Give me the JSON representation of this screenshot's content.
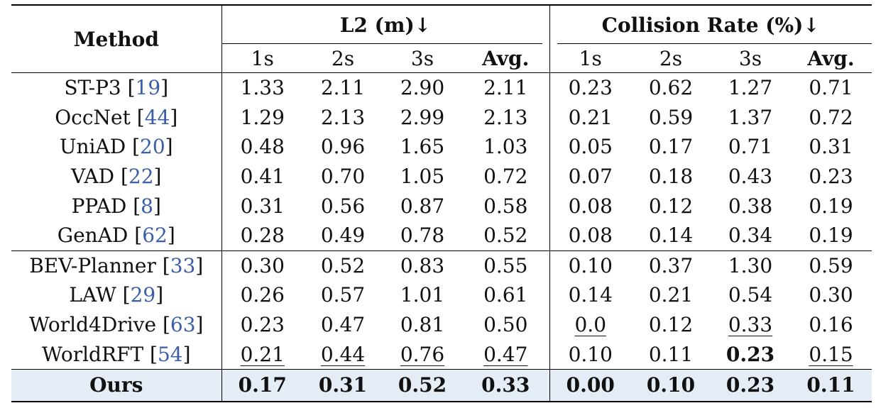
{
  "table": {
    "method_header": "Method",
    "group_l2": "L2 (m)↓",
    "group_collision": "Collision Rate (%)↓",
    "sub_headers": [
      "1s",
      "2s",
      "3s",
      "Avg.",
      "1s",
      "2s",
      "3s",
      "Avg."
    ],
    "rows": [
      {
        "name": "ST-P3 [",
        "cite": "19",
        "close": "]",
        "values": [
          "1.33",
          "2.11",
          "2.90",
          "2.11",
          "0.23",
          "0.62",
          "1.27",
          "0.71"
        ],
        "underline": [],
        "bold": []
      },
      {
        "name": "OccNet [",
        "cite": "44",
        "close": "]",
        "values": [
          "1.29",
          "2.13",
          "2.99",
          "2.13",
          "0.21",
          "0.59",
          "1.37",
          "0.72"
        ],
        "underline": [],
        "bold": []
      },
      {
        "name": "UniAD [",
        "cite": "20",
        "close": "]",
        "values": [
          "0.48",
          "0.96",
          "1.65",
          "1.03",
          "0.05",
          "0.17",
          "0.71",
          "0.31"
        ],
        "underline": [],
        "bold": []
      },
      {
        "name": "VAD [",
        "cite": "22",
        "close": "]",
        "values": [
          "0.41",
          "0.70",
          "1.05",
          "0.72",
          "0.07",
          "0.18",
          "0.43",
          "0.23"
        ],
        "underline": [],
        "bold": []
      },
      {
        "name": "PPAD [",
        "cite": "8",
        "close": "]",
        "values": [
          "0.31",
          "0.56",
          "0.87",
          "0.58",
          "0.08",
          "0.12",
          "0.38",
          "0.19"
        ],
        "underline": [],
        "bold": []
      },
      {
        "name": "GenAD [",
        "cite": "62",
        "close": "]",
        "values": [
          "0.28",
          "0.49",
          "0.78",
          "0.52",
          "0.08",
          "0.14",
          "0.34",
          "0.19"
        ],
        "underline": [],
        "bold": []
      },
      {
        "name": "BEV-Planner [",
        "cite": "33",
        "close": "]",
        "values": [
          "0.30",
          "0.52",
          "0.83",
          "0.55",
          "0.10",
          "0.37",
          "1.30",
          "0.59"
        ],
        "underline": [],
        "bold": []
      },
      {
        "name": "LAW [",
        "cite": "29",
        "close": "]",
        "values": [
          "0.26",
          "0.57",
          "1.01",
          "0.61",
          "0.14",
          "0.21",
          "0.54",
          "0.30"
        ],
        "underline": [],
        "bold": []
      },
      {
        "name": "World4Drive [",
        "cite": "63",
        "close": "]",
        "values": [
          "0.23",
          "0.47",
          "0.81",
          "0.50",
          "0.0",
          "0.12",
          "0.33",
          "0.16"
        ],
        "underline": [
          4,
          6
        ],
        "bold": []
      },
      {
        "name": "WorldRFT [",
        "cite": "54",
        "close": "]",
        "values": [
          "0.21",
          "0.44",
          "0.76",
          "0.47",
          "0.10",
          "0.11",
          "0.23",
          "0.15"
        ],
        "underline": [
          0,
          1,
          2,
          3,
          7
        ],
        "bold": [
          6
        ]
      }
    ],
    "ours": {
      "name": "Ours",
      "values": [
        "0.17",
        "0.31",
        "0.52",
        "0.33",
        "0.00",
        "0.10",
        "0.23",
        "0.11"
      ]
    },
    "ours_highlight_color": "#e4ecf6",
    "citation_color": "#3b5ea8"
  }
}
